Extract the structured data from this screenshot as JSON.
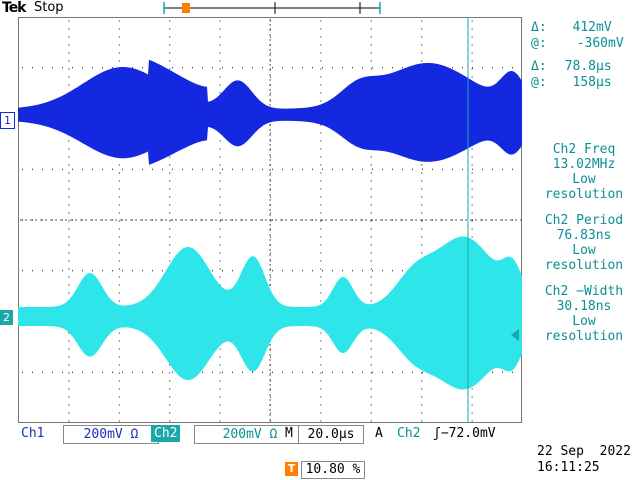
{
  "header": {
    "brand": "Tek",
    "run_state": "Stop"
  },
  "cursor_readouts": {
    "voltage_delta_symbol": "Δ:",
    "voltage_delta": "412mV",
    "voltage_at_symbol": "@:",
    "voltage_at": "-360mV",
    "time_delta_symbol": "Δ:",
    "time_delta": "78.8µs",
    "time_at_symbol": "@:",
    "time_at": "158µs"
  },
  "measurements": [
    {
      "name": "Ch2 Freq",
      "value": "13.02MHz",
      "note1": "Low",
      "note2": "resolution"
    },
    {
      "name": "Ch2 Period",
      "value": "76.83ns",
      "note1": "Low",
      "note2": "resolution"
    },
    {
      "name": "Ch2 −Width",
      "value": "30.18ns",
      "note1": "Low",
      "note2": "resolution"
    }
  ],
  "channel_markers": {
    "ch1": "1",
    "ch2": "2"
  },
  "trigger_marker": "T",
  "bottom_bar": {
    "ch1_label": "Ch1",
    "ch1_scale": "200mV Ω",
    "ch2_label": "Ch2",
    "ch2_scale": "200mV Ω",
    "timebase_label": "M",
    "timebase_value": "20.0µs",
    "trigger_mode": "A",
    "trigger_source": "Ch2",
    "trigger_level": "ʃ−72.0mV"
  },
  "datetime": {
    "date": "22 Sep  2022",
    "time": "16:11:25"
  },
  "trigger_position": {
    "badge": "T",
    "value": "10.80 %"
  },
  "colors": {
    "ch1": "#1428e0",
    "ch2": "#2ee6ea",
    "readout": "#0c8f95",
    "trigger": "#ff8000"
  }
}
